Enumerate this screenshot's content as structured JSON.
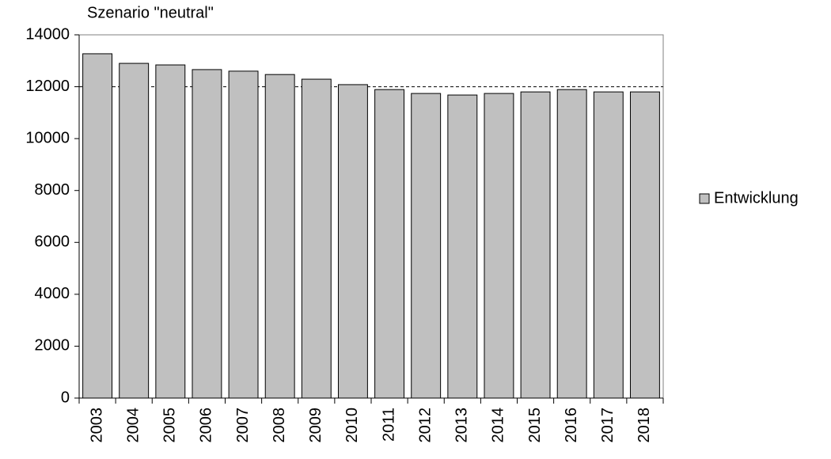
{
  "chart_data": {
    "type": "bar",
    "title": "Szenario \"neutral\"",
    "categories": [
      "2003",
      "2004",
      "2005",
      "2006",
      "2007",
      "2008",
      "2009",
      "2010",
      "2011",
      "2012",
      "2013",
      "2014",
      "2015",
      "2016",
      "2017",
      "2018"
    ],
    "series": [
      {
        "name": "Entwicklung",
        "color": "#c0c0c0",
        "values": [
          13270,
          12900,
          12840,
          12660,
          12600,
          12470,
          12290,
          12080,
          11890,
          11740,
          11680,
          11740,
          11800,
          11890,
          11800,
          11800
        ]
      }
    ],
    "ylim": [
      0,
      14000
    ],
    "yticks": [
      0,
      2000,
      4000,
      6000,
      8000,
      10000,
      12000,
      14000
    ],
    "reference_line": 12000,
    "legend": "right"
  }
}
